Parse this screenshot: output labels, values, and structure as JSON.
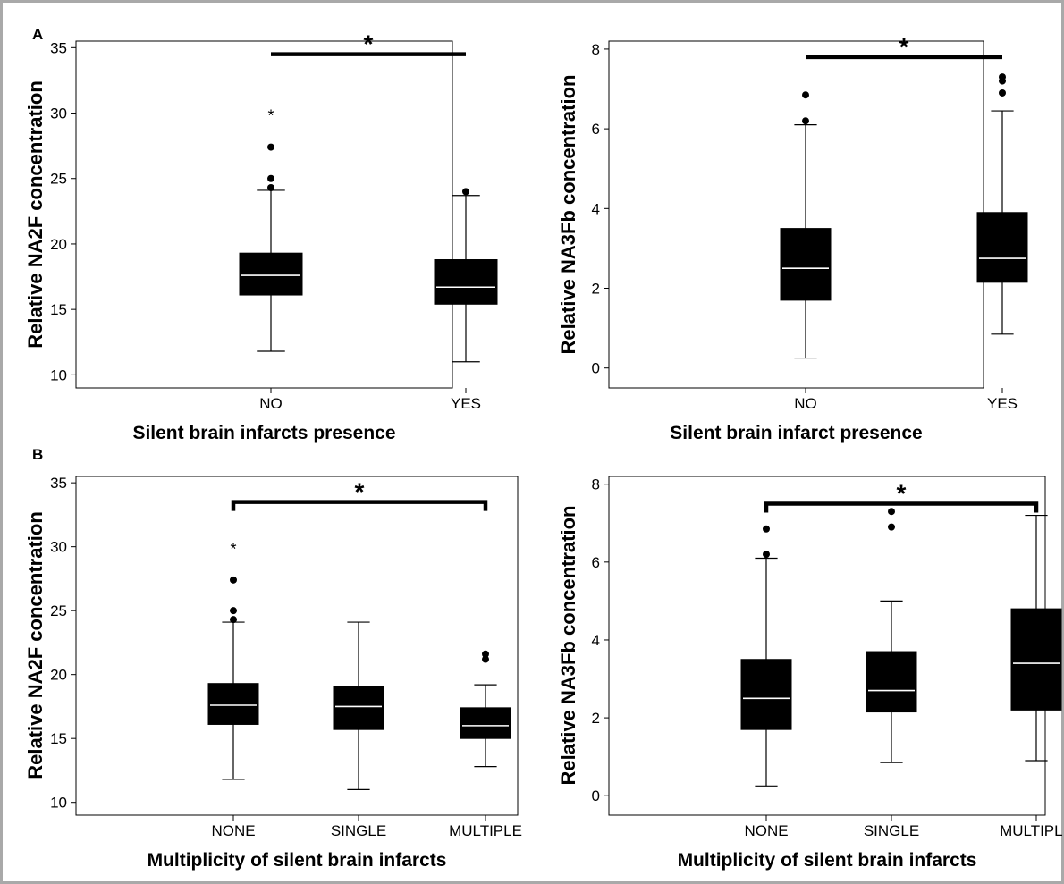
{
  "panel_labels": [
    "A",
    "B"
  ],
  "chart_data": [
    {
      "type": "boxplot",
      "panel": "A",
      "ylabel": "Relative NA2F concentration",
      "xlabel": "Silent brain infarcts presence",
      "categories": [
        "NO",
        "YES"
      ],
      "ylim": [
        9,
        35.5
      ],
      "yticks": [
        10,
        15,
        20,
        25,
        30,
        35
      ],
      "boxes": [
        {
          "whisker_low": 11.8,
          "q1": 16.1,
          "median": 17.6,
          "q3": 19.3,
          "whisker_high": 24.1,
          "outliers": [
            24.3,
            25.0,
            27.4
          ],
          "extremes": [
            30.0
          ]
        },
        {
          "whisker_low": 11.0,
          "q1": 15.4,
          "median": 16.7,
          "q3": 18.8,
          "whisker_high": 23.7,
          "outliers": [
            24.0
          ],
          "extremes": []
        }
      ],
      "significance": {
        "from": 0,
        "to": 1,
        "label": "*",
        "y": 34.5,
        "style": "bar"
      }
    },
    {
      "type": "boxplot",
      "panel": "A",
      "ylabel": "Relative NA3Fb concentration",
      "xlabel": "Silent brain infarct presence",
      "categories": [
        "NO",
        "YES"
      ],
      "ylim": [
        -0.5,
        8.2
      ],
      "yticks": [
        0,
        2,
        4,
        6,
        8
      ],
      "boxes": [
        {
          "whisker_low": 0.25,
          "q1": 1.7,
          "median": 2.5,
          "q3": 3.5,
          "whisker_high": 6.1,
          "outliers": [
            6.2,
            6.85
          ],
          "extremes": []
        },
        {
          "whisker_low": 0.85,
          "q1": 2.15,
          "median": 2.75,
          "q3": 3.9,
          "whisker_high": 6.45,
          "outliers": [
            6.9,
            7.2,
            7.3
          ],
          "extremes": []
        }
      ],
      "significance": {
        "from": 0,
        "to": 1,
        "label": "*",
        "y": 7.8,
        "style": "bar"
      }
    },
    {
      "type": "boxplot",
      "panel": "B",
      "ylabel": "Relative NA2F concentration",
      "xlabel": "Multiplicity of silent brain infarcts",
      "categories": [
        "NONE",
        "SINGLE",
        "MULTIPLE"
      ],
      "ylim": [
        9,
        35.5
      ],
      "yticks": [
        10,
        15,
        20,
        25,
        30,
        35
      ],
      "boxes": [
        {
          "whisker_low": 11.8,
          "q1": 16.1,
          "median": 17.6,
          "q3": 19.3,
          "whisker_high": 24.1,
          "outliers": [
            24.3,
            25.0,
            27.4
          ],
          "extremes": [
            30.0
          ]
        },
        {
          "whisker_low": 11.0,
          "q1": 15.7,
          "median": 17.5,
          "q3": 19.1,
          "whisker_high": 24.1,
          "outliers": [],
          "extremes": []
        },
        {
          "whisker_low": 12.8,
          "q1": 15.0,
          "median": 16.0,
          "q3": 17.4,
          "whisker_high": 19.2,
          "outliers": [
            21.2,
            21.6
          ],
          "extremes": []
        }
      ],
      "significance": {
        "from": 0,
        "to": 2,
        "label": "*",
        "y": 33.5,
        "style": "bracket"
      }
    },
    {
      "type": "boxplot",
      "panel": "B",
      "ylabel": "Relative NA3Fb concentration",
      "xlabel": "Multiplicity of silent brain infarcts",
      "categories": [
        "NONE",
        "SINGLE",
        "MULTIPLE"
      ],
      "ylim": [
        -0.5,
        8.2
      ],
      "yticks": [
        0,
        2,
        4,
        6,
        8
      ],
      "boxes": [
        {
          "whisker_low": 0.25,
          "q1": 1.7,
          "median": 2.5,
          "q3": 3.5,
          "whisker_high": 6.1,
          "outliers": [
            6.2,
            6.85
          ],
          "extremes": []
        },
        {
          "whisker_low": 0.85,
          "q1": 2.15,
          "median": 2.7,
          "q3": 3.7,
          "whisker_high": 5.0,
          "outliers": [
            6.9,
            7.3
          ],
          "extremes": []
        },
        {
          "whisker_low": 0.9,
          "q1": 2.2,
          "median": 3.4,
          "q3": 4.8,
          "whisker_high": 7.2,
          "outliers": [],
          "extremes": []
        }
      ],
      "significance": {
        "from": 0,
        "to": 2,
        "label": "*",
        "y": 7.5,
        "style": "bracket"
      }
    }
  ]
}
